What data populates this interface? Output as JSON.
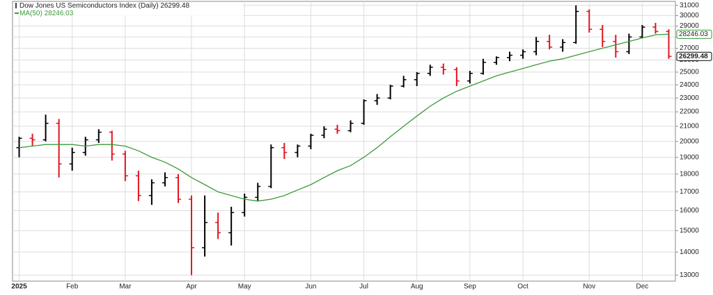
{
  "chart_data": {
    "type": "ohlc",
    "log_scale": true,
    "grid": true,
    "categories": [
      "2025",
      null,
      null,
      null,
      "Feb",
      null,
      null,
      null,
      "Mar",
      null,
      null,
      null,
      null,
      "Apr",
      null,
      null,
      null,
      "May",
      null,
      null,
      null,
      null,
      "Jun",
      null,
      null,
      null,
      "Jul",
      null,
      null,
      null,
      "Aug",
      null,
      null,
      null,
      "Sep",
      null,
      null,
      null,
      "Oct",
      null,
      null,
      null,
      null,
      "Nov",
      null,
      null,
      null,
      "Dec",
      null,
      null
    ],
    "series": [
      {
        "name": "Dow Jones US Semiconductors Index (Daily)",
        "up_color": "#000000",
        "down_color": "#e0141e",
        "open": [
          19600,
          20200,
          20100,
          21200,
          18600,
          19300,
          20100,
          20600,
          19200,
          17900,
          16800,
          17500,
          17800,
          16600,
          14200,
          15400,
          14900,
          15900,
          16700,
          17300,
          19600,
          19300,
          19700,
          20400,
          20800,
          20700,
          21200,
          22800,
          23000,
          23900,
          24400,
          24900,
          25400,
          25200,
          24300,
          24900,
          25800,
          26200,
          26400,
          26700,
          27600,
          27100,
          27500,
          30400,
          28700,
          27600,
          26700,
          28000,
          28900,
          28500
        ],
        "high": [
          20300,
          20500,
          21800,
          21500,
          19600,
          20300,
          20800,
          20700,
          19400,
          18200,
          17700,
          18100,
          18000,
          16800,
          16800,
          15900,
          16200,
          16900,
          17500,
          19800,
          19900,
          19800,
          20500,
          21000,
          21100,
          21400,
          22900,
          23300,
          24000,
          24700,
          25000,
          25600,
          25700,
          25400,
          25100,
          26100,
          26300,
          26700,
          26900,
          28000,
          28200,
          27800,
          31000,
          30600,
          29100,
          28200,
          28300,
          29100,
          29300,
          28700
        ],
        "low": [
          19000,
          19700,
          20000,
          17800,
          18200,
          19100,
          19900,
          18800,
          17600,
          16500,
          16300,
          17300,
          16400,
          13000,
          13800,
          14600,
          14300,
          15700,
          16500,
          17200,
          18900,
          19000,
          19500,
          20200,
          20500,
          20600,
          21100,
          22500,
          22900,
          23800,
          23900,
          24700,
          24800,
          23900,
          24100,
          24800,
          25600,
          25900,
          26100,
          26400,
          26900,
          26700,
          27400,
          28400,
          27100,
          26200,
          26500,
          27900,
          28300,
          26100
        ],
        "close": [
          20200,
          20100,
          21200,
          18600,
          19300,
          20100,
          20600,
          19200,
          17900,
          16800,
          17500,
          17800,
          16600,
          14200,
          15400,
          14900,
          15900,
          16700,
          17300,
          19600,
          19300,
          19700,
          20400,
          20800,
          20700,
          21200,
          22800,
          23000,
          23900,
          24400,
          24900,
          25400,
          25200,
          24300,
          24900,
          25800,
          26200,
          26400,
          26700,
          27600,
          27100,
          27500,
          30400,
          28700,
          27600,
          26700,
          28000,
          28900,
          28500,
          26299.48
        ]
      },
      {
        "name": "MA(50)",
        "color": "#3a9a3a",
        "values": [
          19600,
          19700,
          19800,
          19800,
          19800,
          19700,
          19800,
          19800,
          19700,
          19400,
          19000,
          18700,
          18300,
          17800,
          17400,
          17000,
          16800,
          16600,
          16500,
          16600,
          16800,
          17100,
          17400,
          17800,
          18200,
          18500,
          19000,
          19600,
          20300,
          21000,
          21700,
          22400,
          23000,
          23500,
          23900,
          24300,
          24700,
          25000,
          25300,
          25600,
          25900,
          26100,
          26400,
          26700,
          27000,
          27300,
          27600,
          27900,
          28200,
          28246.03
        ]
      }
    ],
    "ylim": [
      12750,
      31400
    ],
    "yticks": [
      13000,
      14000,
      15000,
      16000,
      17000,
      18000,
      19000,
      20000,
      21000,
      22000,
      23000,
      24000,
      25000,
      26000,
      27000,
      28000,
      29000,
      30000,
      31000
    ]
  }
}
